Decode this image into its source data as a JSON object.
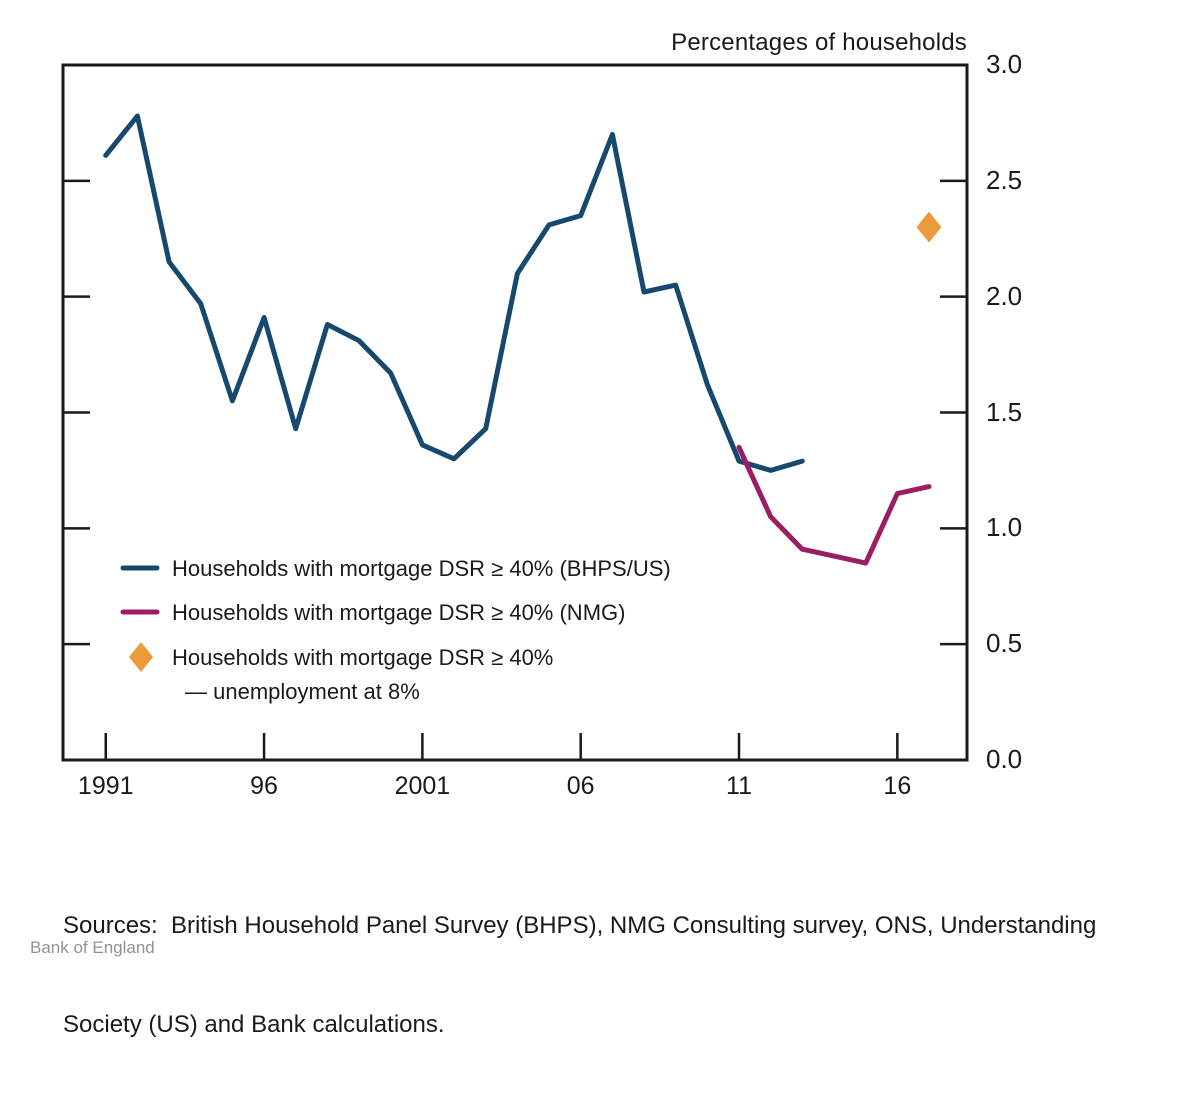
{
  "title": "Percentages of households",
  "footer": "Bank of England",
  "sources": {
    "line1": "Sources:  British Household Panel Survey (BHPS), NMG Consulting survey, ONS, Understanding",
    "line2": "Society (US) and Bank calculations."
  },
  "colors": {
    "bhps_line": "#17496F",
    "nmg_line": "#9B1D64",
    "diamond": "#EA9C3D",
    "axis": "#1a1a1a",
    "text": "#1a1a1a",
    "footer_text": "#919191"
  },
  "legend": {
    "items": [
      {
        "label": "Households with mortgage DSR ≥ 40% (BHPS/US)",
        "marker": "line",
        "color": "#17496F"
      },
      {
        "label": "Households with mortgage DSR ≥ 40% (NMG)",
        "marker": "line",
        "color": "#9B1D64"
      },
      {
        "label": "Households with mortgage DSR ≥ 40%",
        "label_line2": "— unemployment at 8%",
        "marker": "diamond",
        "color": "#EA9C3D"
      }
    ]
  },
  "chart_data": {
    "type": "line",
    "title": "Percentages of households",
    "xlabel": "",
    "ylabel": "Percentages of households",
    "ylim": [
      0.0,
      3.0
    ],
    "yticks": [
      0.0,
      0.5,
      1.0,
      1.5,
      2.0,
      2.5,
      3.0
    ],
    "ytick_labels": [
      "0.0",
      "0.5",
      "1.0",
      "1.5",
      "2.0",
      "2.5",
      "3.0"
    ],
    "xticks": [
      1991,
      1996,
      2001,
      2006,
      2011,
      2016
    ],
    "xtick_labels": [
      "1991",
      "96",
      "2001",
      "06",
      "11",
      "16"
    ],
    "x_range": [
      1989.65,
      2018.2
    ],
    "grid": false,
    "legend_position": "inside lower-left",
    "yaxis_side": "right",
    "series": [
      {
        "name": "Households with mortgage DSR ≥ 40% (BHPS/US)",
        "color": "#17496F",
        "points": [
          [
            1991,
            2.61
          ],
          [
            1992,
            2.78
          ],
          [
            1993,
            2.15
          ],
          [
            1994,
            1.97
          ],
          [
            1995,
            1.55
          ],
          [
            1996,
            1.91
          ],
          [
            1997,
            1.43
          ],
          [
            1998,
            1.88
          ],
          [
            1999,
            1.81
          ],
          [
            2000,
            1.67
          ],
          [
            2001,
            1.36
          ],
          [
            2002,
            1.3
          ],
          [
            2003,
            1.43
          ],
          [
            2004,
            2.1
          ],
          [
            2005,
            2.31
          ],
          [
            2006,
            2.35
          ],
          [
            2007,
            2.7
          ],
          [
            2008,
            2.02
          ],
          [
            2009,
            2.05
          ],
          [
            2010,
            1.62
          ],
          [
            2011,
            1.29
          ],
          [
            2012,
            1.25
          ],
          [
            2013,
            1.29
          ]
        ]
      },
      {
        "name": "Households with mortgage DSR ≥ 40% (NMG)",
        "color": "#9B1D64",
        "points": [
          [
            2011,
            1.35
          ],
          [
            2012,
            1.05
          ],
          [
            2013,
            0.91
          ],
          [
            2014,
            0.88
          ],
          [
            2015,
            0.85
          ],
          [
            2016,
            1.15
          ],
          [
            2017,
            1.18
          ]
        ]
      }
    ],
    "markers": [
      {
        "name": "Households with mortgage DSR ≥ 40% — unemployment at 8%",
        "shape": "diamond",
        "color": "#EA9C3D",
        "x": 2017,
        "y": 2.3
      }
    ]
  }
}
